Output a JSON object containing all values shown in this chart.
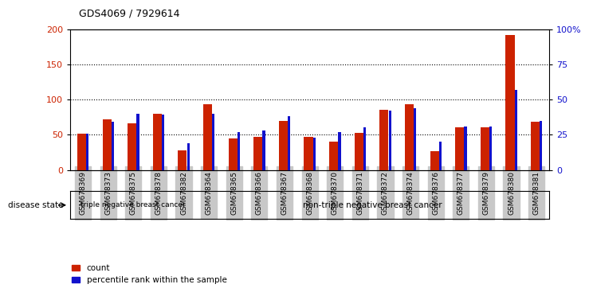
{
  "title": "GDS4069 / 7929614",
  "samples": [
    "GSM678369",
    "GSM678373",
    "GSM678375",
    "GSM678378",
    "GSM678382",
    "GSM678364",
    "GSM678365",
    "GSM678366",
    "GSM678367",
    "GSM678368",
    "GSM678370",
    "GSM678371",
    "GSM678372",
    "GSM678374",
    "GSM678376",
    "GSM678377",
    "GSM678379",
    "GSM678380",
    "GSM678381"
  ],
  "counts": [
    52,
    72,
    66,
    80,
    28,
    93,
    45,
    47,
    70,
    47,
    40,
    53,
    85,
    93,
    27,
    60,
    61,
    192,
    68
  ],
  "percentiles": [
    26,
    34,
    40,
    39,
    19,
    40,
    27,
    28,
    38,
    23,
    27,
    30,
    42,
    44,
    20,
    31,
    31,
    57,
    35
  ],
  "triple_neg_count": 5,
  "non_triple_neg_count": 14,
  "disease_group1": "triple negative breast cancer",
  "disease_group2": "non-triple negative breast cancer",
  "disease_label": "disease state",
  "legend_count": "count",
  "legend_pct": "percentile rank within the sample",
  "ylim_left": [
    0,
    200
  ],
  "ylim_right": [
    0,
    100
  ],
  "yticks_left": [
    0,
    50,
    100,
    150,
    200
  ],
  "yticks_right": [
    0,
    25,
    50,
    75,
    100
  ],
  "ytick_labels_right": [
    "0",
    "25",
    "50",
    "75",
    "100%"
  ],
  "bar_color_count": "#cc2200",
  "bar_color_pct": "#1111cc",
  "bg_color": "#ffffff",
  "plot_bg": "#ffffff",
  "grid_color": "#000000",
  "triple_neg_bg": "#c8c8c8",
  "non_triple_neg_bg": "#44bb44",
  "xtick_bg": "#c8c8c8"
}
